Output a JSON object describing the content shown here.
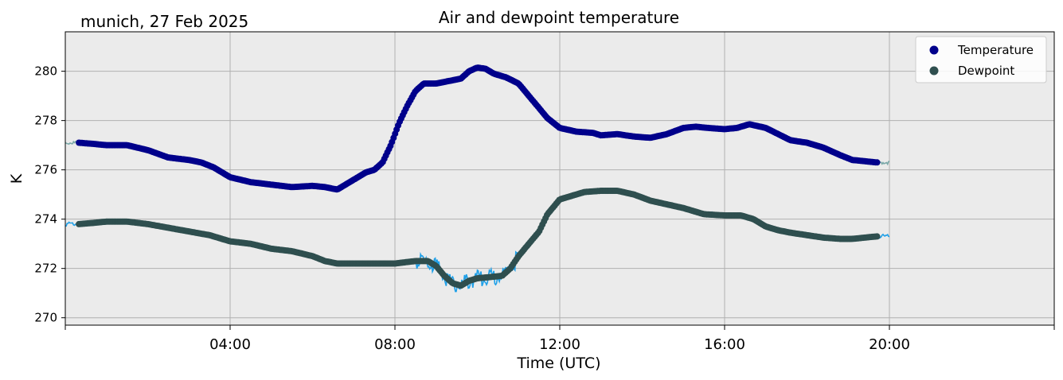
{
  "header": {
    "location_date": "munich, 27 Feb 2025"
  },
  "chart_data": {
    "type": "scatter",
    "title": "Air and dewpoint temperature",
    "xlabel": "Time (UTC)",
    "ylabel": "K",
    "xlim_hours": [
      0,
      24
    ],
    "ylim": [
      269.7,
      281.6
    ],
    "x_ticks_hours": [
      4,
      8,
      12,
      16,
      20
    ],
    "x_tick_labels": [
      "04:00",
      "08:00",
      "12:00",
      "16:00",
      "20:00"
    ],
    "y_ticks": [
      270,
      272,
      274,
      276,
      278,
      280
    ],
    "y_tick_labels": [
      "270",
      "272",
      "274",
      "276",
      "278",
      "280"
    ],
    "grid": true,
    "legend_placement": "top-right",
    "background_color": "#ebebeb",
    "series": [
      {
        "name": "Temperature",
        "marker_color": "#00008b",
        "raw_color": "#7aa8a8",
        "x_hours": [
          0.33,
          0.7,
          1.0,
          1.5,
          2.0,
          2.5,
          3.0,
          3.3,
          3.6,
          4.0,
          4.5,
          5.0,
          5.5,
          6.0,
          6.3,
          6.6,
          7.0,
          7.3,
          7.5,
          7.7,
          7.9,
          8.1,
          8.3,
          8.5,
          8.7,
          9.0,
          9.3,
          9.6,
          9.8,
          10.0,
          10.2,
          10.4,
          10.7,
          11.0,
          11.2,
          11.5,
          11.7,
          12.0,
          12.4,
          12.8,
          13.0,
          13.4,
          13.8,
          14.2,
          14.6,
          15.0,
          15.3,
          15.6,
          16.0,
          16.3,
          16.6,
          17.0,
          17.3,
          17.6,
          18.0,
          18.4,
          18.8,
          19.1,
          19.4,
          19.7
        ],
        "values": [
          277.1,
          277.05,
          277.0,
          277.0,
          276.8,
          276.5,
          276.4,
          276.3,
          276.1,
          275.7,
          275.5,
          275.4,
          275.3,
          275.35,
          275.3,
          275.2,
          275.6,
          275.9,
          276.0,
          276.3,
          277.0,
          277.9,
          278.6,
          279.2,
          279.5,
          279.5,
          279.6,
          279.7,
          280.0,
          280.15,
          280.1,
          279.9,
          279.75,
          279.5,
          279.1,
          278.5,
          278.1,
          277.7,
          277.55,
          277.5,
          277.4,
          277.45,
          277.35,
          277.3,
          277.45,
          277.7,
          277.75,
          277.7,
          277.65,
          277.7,
          277.85,
          277.7,
          277.45,
          277.2,
          277.1,
          276.9,
          276.6,
          276.4,
          276.35,
          276.3
        ]
      },
      {
        "name": "Dewpoint",
        "marker_color": "#2f4f4f",
        "raw_color": "#1fa0e8",
        "x_hours": [
          0.33,
          0.7,
          1.0,
          1.5,
          2.0,
          2.5,
          3.0,
          3.5,
          4.0,
          4.5,
          5.0,
          5.5,
          6.0,
          6.3,
          6.6,
          7.0,
          7.5,
          8.0,
          8.5,
          8.8,
          9.0,
          9.2,
          9.4,
          9.6,
          9.8,
          10.0,
          10.3,
          10.6,
          10.8,
          11.0,
          11.2,
          11.5,
          11.7,
          12.0,
          12.3,
          12.6,
          13.0,
          13.4,
          13.8,
          14.2,
          14.6,
          15.0,
          15.5,
          16.0,
          16.4,
          16.7,
          17.0,
          17.3,
          17.6,
          18.0,
          18.4,
          18.8,
          19.1,
          19.4,
          19.7
        ],
        "values": [
          273.8,
          273.85,
          273.9,
          273.9,
          273.8,
          273.65,
          273.5,
          273.35,
          273.1,
          273.0,
          272.8,
          272.7,
          272.5,
          272.3,
          272.2,
          272.2,
          272.2,
          272.2,
          272.3,
          272.3,
          272.1,
          271.7,
          271.4,
          271.3,
          271.5,
          271.6,
          271.65,
          271.7,
          272.0,
          272.5,
          272.9,
          273.5,
          274.2,
          274.8,
          274.95,
          275.1,
          275.15,
          275.15,
          275.0,
          274.75,
          274.6,
          274.45,
          274.2,
          274.15,
          274.15,
          274.0,
          273.7,
          273.55,
          273.45,
          273.35,
          273.25,
          273.2,
          273.2,
          273.25,
          273.3
        ]
      }
    ]
  }
}
